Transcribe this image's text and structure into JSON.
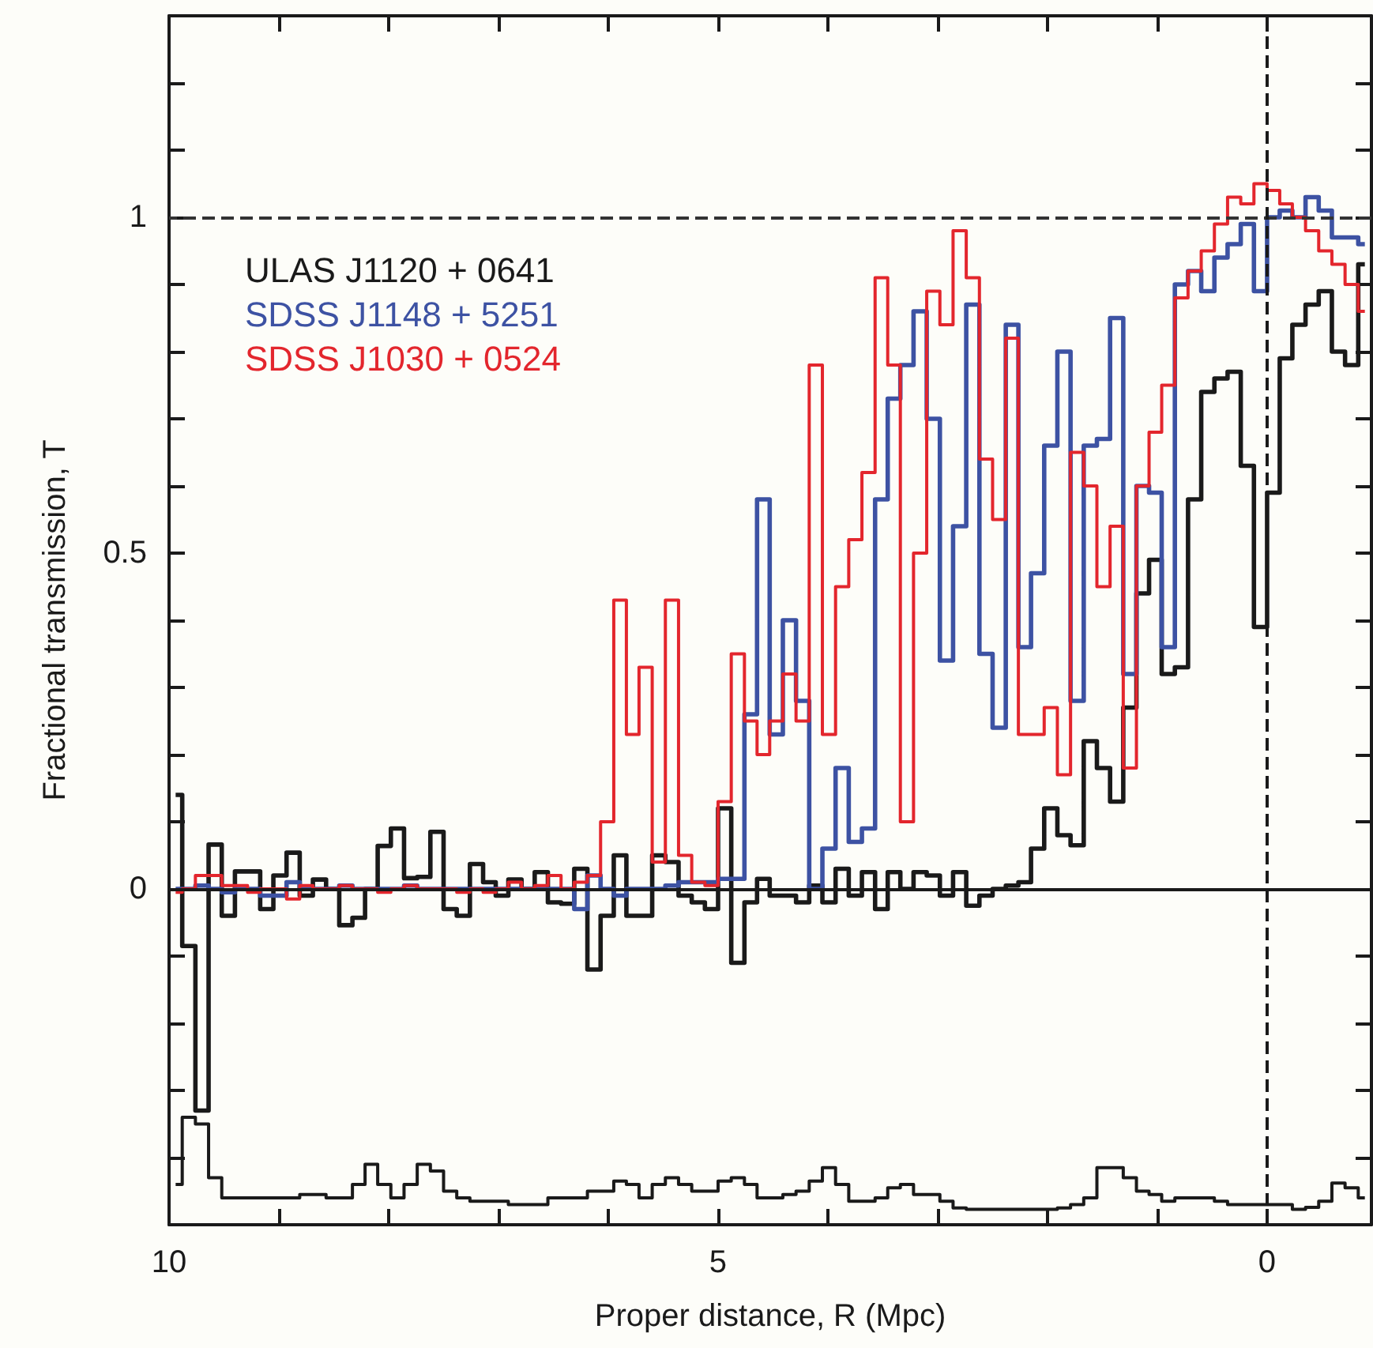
{
  "chart_data": {
    "type": "step",
    "xlabel": "Proper distance, R (Mpc)",
    "ylabel": "Fractional transmission, T",
    "x": [
      9.94,
      9.82,
      9.7,
      9.58,
      9.46,
      9.34,
      9.23,
      9.11,
      8.99,
      8.87,
      8.75,
      8.63,
      8.51,
      8.39,
      8.27,
      8.16,
      8.04,
      7.92,
      7.8,
      7.68,
      7.56,
      7.44,
      7.32,
      7.2,
      7.08,
      6.97,
      6.85,
      6.73,
      6.61,
      6.49,
      6.37,
      6.25,
      6.13,
      6.01,
      5.89,
      5.78,
      5.66,
      5.54,
      5.42,
      5.3,
      5.18,
      5.06,
      4.94,
      4.82,
      4.7,
      4.59,
      4.47,
      4.35,
      4.23,
      4.11,
      3.99,
      3.87,
      3.75,
      3.63,
      3.51,
      3.4,
      3.28,
      3.16,
      3.04,
      2.92,
      2.8,
      2.68,
      2.56,
      2.44,
      2.32,
      2.21,
      2.09,
      1.97,
      1.85,
      1.73,
      1.61,
      1.49,
      1.37,
      1.25,
      1.13,
      1.02,
      0.9,
      0.78,
      0.66,
      0.54,
      0.42,
      0.3,
      0.18,
      0.06,
      -0.06,
      -0.17,
      -0.29,
      -0.41,
      -0.53,
      -0.65,
      -0.77,
      -0.89
    ],
    "series": [
      {
        "name": "ULAS J1120 + 0641",
        "color": "#1a1a1a",
        "values": [
          0.14,
          -0.085,
          -0.33,
          0.066,
          -0.04,
          0.026,
          0.026,
          -0.03,
          0.02,
          0.054,
          -0.01,
          0.014,
          0,
          -0.054,
          -0.043,
          0,
          0.064,
          0.09,
          0.016,
          0.018,
          0.085,
          -0.03,
          -0.04,
          0.037,
          0.01,
          -0.01,
          0.014,
          0,
          0.025,
          -0.02,
          -0.022,
          0.03,
          -0.12,
          -0.04,
          0.05,
          -0.04,
          -0.04,
          0.05,
          0.04,
          -0.01,
          -0.02,
          -0.03,
          0.12,
          -0.11,
          -0.02,
          0.015,
          -0.01,
          -0.01,
          -0.02,
          0.005,
          -0.02,
          0.03,
          -0.01,
          0.025,
          -0.03,
          0.025,
          0,
          0.025,
          0.02,
          -0.01,
          0.025,
          -0.025,
          -0.01,
          0,
          0.005,
          0.01,
          0.06,
          0.12,
          0.08,
          0.065,
          0.22,
          0.18,
          0.13,
          0.27,
          0.44,
          0.49,
          0.32,
          0.33,
          0.58,
          0.74,
          0.76,
          0.77,
          0.63,
          0.39,
          0.59,
          0.79,
          0.84,
          0.87,
          0.89,
          0.8,
          0.78,
          0.93
        ]
      },
      {
        "name": "SDSS J1148 + 5251",
        "color": "#3d52a3",
        "values": [
          0,
          0,
          0.005,
          0,
          -0.005,
          0,
          0,
          -0.01,
          -0.01,
          0.01,
          0,
          0,
          0,
          0.005,
          0,
          0,
          0,
          0,
          0.005,
          0,
          0,
          0,
          0,
          0,
          0,
          0,
          0,
          0,
          0,
          0,
          0,
          -0.03,
          0.02,
          0,
          -0.01,
          0,
          0,
          0,
          0.005,
          0.01,
          0.01,
          0.01,
          0.015,
          0.015,
          0.26,
          0.58,
          0.23,
          0.4,
          0.28,
          0,
          0.06,
          0.18,
          0.07,
          0.09,
          0.58,
          0.73,
          0.78,
          0.86,
          0.7,
          0.34,
          0.54,
          0.87,
          0.35,
          0.24,
          0.84,
          0.36,
          0.47,
          0.66,
          0.8,
          0.28,
          0.66,
          0.67,
          0.85,
          0.32,
          0.6,
          0.59,
          0.36,
          0.9,
          0.92,
          0.89,
          0.94,
          0.96,
          0.99,
          0.89,
          1,
          1.01,
          1,
          1.03,
          1.01,
          0.97,
          0.97,
          0.96
        ]
      },
      {
        "name": "SDSS J1030 + 0524",
        "color": "#e3262d",
        "values": [
          -0.005,
          0,
          0.02,
          0.02,
          0.005,
          0.005,
          -0.005,
          0,
          0,
          -0.015,
          0.005,
          0,
          0,
          0.005,
          0,
          0,
          -0.005,
          0,
          0.005,
          0,
          0,
          0,
          -0.005,
          0,
          -0.005,
          0,
          0.01,
          0,
          0.005,
          0.02,
          0,
          0.01,
          0.02,
          0.1,
          0.43,
          0.23,
          0.33,
          0.04,
          0.43,
          0.05,
          0.01,
          0.005,
          0.13,
          0.35,
          0.25,
          0.2,
          0.25,
          0.32,
          0.25,
          0.78,
          0.23,
          0.45,
          0.52,
          0.62,
          0.91,
          0.78,
          0.1,
          0.5,
          0.89,
          0.84,
          0.98,
          0.91,
          0.64,
          0.55,
          0.82,
          0.23,
          0.23,
          0.27,
          0.17,
          0.65,
          0.6,
          0.45,
          0.54,
          0.18,
          0.6,
          0.68,
          0.75,
          0.88,
          0.92,
          0.95,
          0.99,
          1.03,
          1.02,
          1.05,
          1.04,
          1.02,
          1,
          0.98,
          0.95,
          0.93,
          0.9,
          0.86
        ]
      },
      {
        "color": "#1a1a1a",
        "values": [
          -0.44,
          -0.34,
          -0.35,
          -0.43,
          -0.46,
          -0.46,
          -0.46,
          -0.46,
          -0.46,
          -0.46,
          -0.455,
          -0.455,
          -0.46,
          -0.46,
          -0.44,
          -0.41,
          -0.44,
          -0.46,
          -0.44,
          -0.41,
          -0.42,
          -0.45,
          -0.46,
          -0.465,
          -0.465,
          -0.465,
          -0.47,
          -0.47,
          -0.47,
          -0.46,
          -0.46,
          -0.46,
          -0.45,
          -0.45,
          -0.435,
          -0.44,
          -0.46,
          -0.44,
          -0.43,
          -0.44,
          -0.45,
          -0.45,
          -0.435,
          -0.43,
          -0.44,
          -0.46,
          -0.46,
          -0.455,
          -0.45,
          -0.435,
          -0.415,
          -0.44,
          -0.465,
          -0.465,
          -0.46,
          -0.445,
          -0.44,
          -0.455,
          -0.455,
          -0.465,
          -0.475,
          -0.477,
          -0.477,
          -0.477,
          -0.477,
          -0.477,
          -0.477,
          -0.477,
          -0.475,
          -0.47,
          -0.46,
          -0.415,
          -0.415,
          -0.43,
          -0.45,
          -0.455,
          -0.465,
          -0.46,
          -0.46,
          -0.46,
          -0.465,
          -0.47,
          -0.47,
          -0.47,
          -0.47,
          -0.47,
          -0.477,
          -0.474,
          -0.465,
          -0.438,
          -0.445,
          -0.46
        ]
      }
    ],
    "xlim": [
      10,
      -0.95
    ],
    "xticks": [
      10,
      {
        "value": 9,
        "label": null
      },
      {
        "value": 8,
        "label": null
      },
      {
        "value": 7,
        "label": null
      },
      {
        "value": 6,
        "label": null
      },
      5,
      {
        "value": 4,
        "label": null
      },
      {
        "value": 3,
        "label": null
      },
      {
        "value": 2,
        "label": null
      },
      {
        "value": 1,
        "label": null
      },
      0
    ],
    "ylim": [
      -0.5,
      1.3
    ],
    "yticks": [
      {
        "value": -0.4,
        "label": null
      },
      {
        "value": -0.3,
        "label": null
      },
      {
        "value": -0.2,
        "label": null
      },
      {
        "value": -0.1,
        "label": null
      },
      0,
      {
        "value": 0.1,
        "label": null
      },
      {
        "value": 0.2,
        "label": null
      },
      {
        "value": 0.3,
        "label": null
      },
      {
        "value": 0.4,
        "label": null
      },
      0.5,
      {
        "value": 0.6,
        "label": null
      },
      {
        "value": 0.7,
        "label": null
      },
      {
        "value": 0.8,
        "label": null
      },
      {
        "value": 0.9,
        "label": null
      },
      1,
      {
        "value": 1.1,
        "label": null
      },
      {
        "value": 1.2,
        "label": null
      }
    ],
    "ref_lines": [
      {
        "axis": "y",
        "value": 1,
        "color": "#333333",
        "line_style": "dashed"
      },
      {
        "axis": "x",
        "value": 0,
        "color": "#1a1a1a",
        "line_style": "dashed"
      },
      {
        "axis": "y",
        "value": 0,
        "color": "#1a1a1a",
        "line_style": "solid"
      }
    ],
    "grid": false,
    "legend": "top left",
    "marker": "none",
    "line_style": "solid"
  }
}
